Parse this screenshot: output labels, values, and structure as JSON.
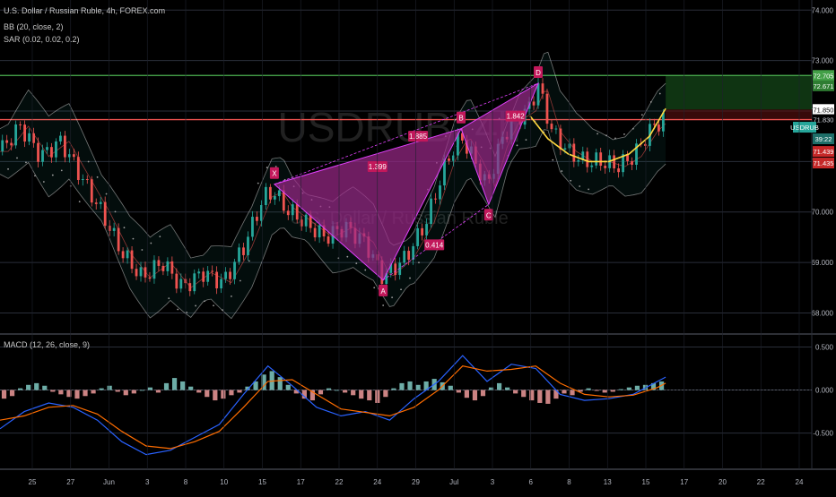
{
  "header": {
    "title": "U.S. Dollar / Russian Ruble, 4h, FOREX.com",
    "indicator_bb": "BB (20, close, 2)",
    "indicator_sar": "SAR (0.02, 0.02, 0.2)",
    "indicator_macd": "MACD (12, 26, close, 9)"
  },
  "watermark": {
    "symbol": "USDRUB, 4h",
    "description": "U.S. Dollar / Russian Ruble"
  },
  "colors": {
    "background": "#000000",
    "up_candle": "#26a69a",
    "down_candle": "#ef5350",
    "pattern_fill": "#9c2a8a",
    "pattern_label": "#c2185b",
    "green_line": "#4caf50",
    "red_line": "#ef5350",
    "cup_curve": "#ffd740",
    "bb_band": "#ffffff",
    "macd_line": "#2962ff",
    "signal_line": "#ff6d00"
  },
  "chart_data": {
    "type": "line",
    "title": "U.S. Dollar / Russian Ruble, 4h, FOREX.com",
    "symbol": "USDRUB",
    "price_axis": {
      "ticks": [
        "74.000",
        "73.000",
        "72.000",
        "71.000",
        "70.000",
        "69.000",
        "68.000"
      ],
      "ylim": [
        67.6,
        74.2
      ]
    },
    "x_axis": {
      "tick_labels": [
        "25",
        "27",
        "Jun",
        "3",
        "8",
        "10",
        "15",
        "17",
        "22",
        "24",
        "29",
        "Jul",
        "3",
        "6",
        "8",
        "13",
        "15",
        "17",
        "20",
        "22",
        "24"
      ],
      "xlim": [
        0,
        100
      ]
    },
    "price_series": {
      "name": "USDRUB",
      "x": [
        0,
        2.5,
        5,
        7.5,
        10,
        12.5,
        15,
        17.5,
        20,
        22.5,
        25,
        27.5,
        30,
        32.5,
        33.8,
        35,
        37.5,
        40,
        42.5,
        45,
        47.2,
        50,
        52.5,
        55,
        56.8,
        58.5,
        60,
        61.5,
        63,
        65,
        66.3,
        68,
        70,
        72,
        74,
        76,
        78,
        80,
        82
      ],
      "y": [
        71.2,
        71.7,
        71.1,
        71.4,
        70.7,
        70.0,
        69.2,
        68.7,
        69.0,
        68.5,
        68.8,
        68.6,
        69.3,
        70.3,
        70.4,
        70.1,
        69.8,
        69.5,
        69.7,
        69.4,
        68.7,
        69.1,
        69.8,
        71.0,
        71.5,
        71.0,
        70.5,
        71.3,
        71.8,
        72.0,
        72.5,
        71.6,
        71.2,
        71.0,
        71.0,
        70.9,
        71.1,
        71.6,
        71.9
      ]
    },
    "harmonic_pattern": {
      "points": [
        {
          "label": "X",
          "x": 33.8,
          "y": 70.55
        },
        {
          "label": "A",
          "x": 47.2,
          "y": 68.65
        },
        {
          "label": "B",
          "x": 56.8,
          "y": 71.65
        },
        {
          "label": "C",
          "x": 60.2,
          "y": 70.15
        },
        {
          "label": "D",
          "x": 66.3,
          "y": 72.55
        }
      ],
      "ratios": [
        {
          "value": "1.399",
          "x": 46.5,
          "y": 70.9
        },
        {
          "value": "1.885",
          "x": 51.5,
          "y": 71.5
        },
        {
          "value": "0.414",
          "x": 53.5,
          "y": 69.35
        },
        {
          "value": "1.842",
          "x": 63.5,
          "y": 71.9
        }
      ]
    },
    "horizontal_levels": [
      {
        "value": 72.705,
        "label": "72.705",
        "color": "#4caf50"
      },
      {
        "value": 71.83,
        "label": "71.830",
        "color": "#ef5350"
      }
    ],
    "price_labels": [
      {
        "text": "72.705",
        "y": 72.705,
        "bg": "#43a047"
      },
      {
        "text": "72.671",
        "y": 72.5,
        "bg": "#2e7d32"
      },
      {
        "text": "71.850",
        "y": 72.03,
        "bg": "#ffffff",
        "fg": "#000000"
      },
      {
        "text": "71.830",
        "y": 71.83,
        "bg": "#000000",
        "fg": "#d1d4dc"
      },
      {
        "text": "USDRUB",
        "y": 71.68,
        "bg": "#26a69a"
      },
      {
        "text": "39:22",
        "y": 71.45,
        "bg": "#1e6e68"
      },
      {
        "text": "71.439",
        "y": 71.2,
        "bg": "#c62828"
      },
      {
        "text": "71.435",
        "y": 70.97,
        "bg": "#c62828"
      }
    ],
    "cup_curve": {
      "x": [
        65.3,
        67.5,
        70,
        72.5,
        75,
        77.5,
        80,
        82
      ],
      "y": [
        71.9,
        71.45,
        71.15,
        71.0,
        71.0,
        71.15,
        71.5,
        72.05
      ]
    },
    "macd": {
      "ticks": [
        "0.500",
        "0.000",
        "-0.500"
      ],
      "ylim": [
        -0.9,
        0.62
      ],
      "histogram_x": [
        0.5,
        1.5,
        2.5,
        3.5,
        4.5,
        5.5,
        6.5,
        7.5,
        8.5,
        9.5,
        10.5,
        11.5,
        12.5,
        13.5,
        14.5,
        15.5,
        16.5,
        17.5,
        18.5,
        19.5,
        20.5,
        21.5,
        22.5,
        23.5,
        24.5,
        25.5,
        26.5,
        27.5,
        28.5,
        29.5,
        30.5,
        31.5,
        32.5,
        33.5,
        34.5,
        35.5,
        36.5,
        37.5,
        38.5,
        39.5,
        40.5,
        41.5,
        42.5,
        43.5,
        44.5,
        45.5,
        46.5,
        47.5,
        48.5,
        49.5,
        50.5,
        51.5,
        52.5,
        53.5,
        54.5,
        55.5,
        56.5,
        57.5,
        58.5,
        59.5,
        60.5,
        61.5,
        62.5,
        63.5,
        64.5,
        65.5,
        66.5,
        67.5,
        68.5,
        69.5,
        70.5,
        71.5,
        72.5,
        73.5,
        74.5,
        75.5,
        76.5,
        77.5,
        78.5,
        79.5,
        80.5,
        81.5
      ],
      "histogram": [
        -0.1,
        -0.07,
        0.02,
        0.06,
        0.08,
        0.05,
        -0.02,
        -0.05,
        -0.08,
        -0.1,
        -0.07,
        -0.04,
        0.02,
        0.05,
        -0.02,
        -0.06,
        -0.04,
        0.0,
        0.03,
        -0.03,
        0.08,
        0.14,
        0.1,
        0.04,
        -0.03,
        -0.08,
        -0.12,
        -0.1,
        -0.06,
        -0.03,
        0.04,
        0.1,
        0.18,
        0.22,
        0.15,
        0.06,
        -0.04,
        -0.1,
        -0.12,
        -0.05,
        0.02,
        0.0,
        -0.03,
        -0.06,
        -0.1,
        -0.12,
        -0.15,
        -0.08,
        0.02,
        0.08,
        0.1,
        0.06,
        0.1,
        0.13,
        0.09,
        0.05,
        -0.03,
        -0.09,
        -0.12,
        -0.07,
        0.03,
        0.08,
        0.03,
        -0.04,
        -0.08,
        -0.12,
        -0.15,
        -0.16,
        -0.1,
        -0.04,
        -0.06,
        -0.02,
        0.02,
        -0.01,
        -0.03,
        -0.02,
        0.01,
        0.03,
        0.05,
        0.06,
        0.08,
        0.1
      ],
      "macd_line": {
        "name": "MACD",
        "x": [
          0,
          3,
          6,
          9,
          12,
          15,
          18,
          21,
          24,
          27,
          30,
          33,
          36,
          39,
          42,
          45,
          48,
          51,
          54,
          57,
          60,
          63,
          66,
          69,
          72,
          75,
          78,
          81,
          82
        ],
        "y": [
          -0.45,
          -0.25,
          -0.15,
          -0.2,
          -0.35,
          -0.6,
          -0.75,
          -0.7,
          -0.55,
          -0.4,
          -0.05,
          0.28,
          0.05,
          -0.2,
          -0.3,
          -0.25,
          -0.35,
          -0.1,
          0.1,
          0.4,
          0.1,
          0.3,
          0.25,
          -0.05,
          -0.12,
          -0.1,
          -0.05,
          0.1,
          0.15
        ]
      },
      "signal_line": {
        "name": "Signal",
        "x": [
          0,
          3,
          6,
          9,
          12,
          15,
          18,
          21,
          24,
          27,
          30,
          33,
          36,
          39,
          42,
          45,
          48,
          51,
          54,
          57,
          60,
          63,
          66,
          69,
          72,
          75,
          78,
          81,
          82
        ],
        "y": [
          -0.35,
          -0.3,
          -0.2,
          -0.18,
          -0.28,
          -0.48,
          -0.65,
          -0.68,
          -0.6,
          -0.48,
          -0.2,
          0.1,
          0.12,
          -0.05,
          -0.22,
          -0.26,
          -0.3,
          -0.2,
          0.0,
          0.28,
          0.22,
          0.24,
          0.28,
          0.08,
          -0.05,
          -0.08,
          -0.06,
          0.03,
          0.08
        ]
      }
    }
  }
}
